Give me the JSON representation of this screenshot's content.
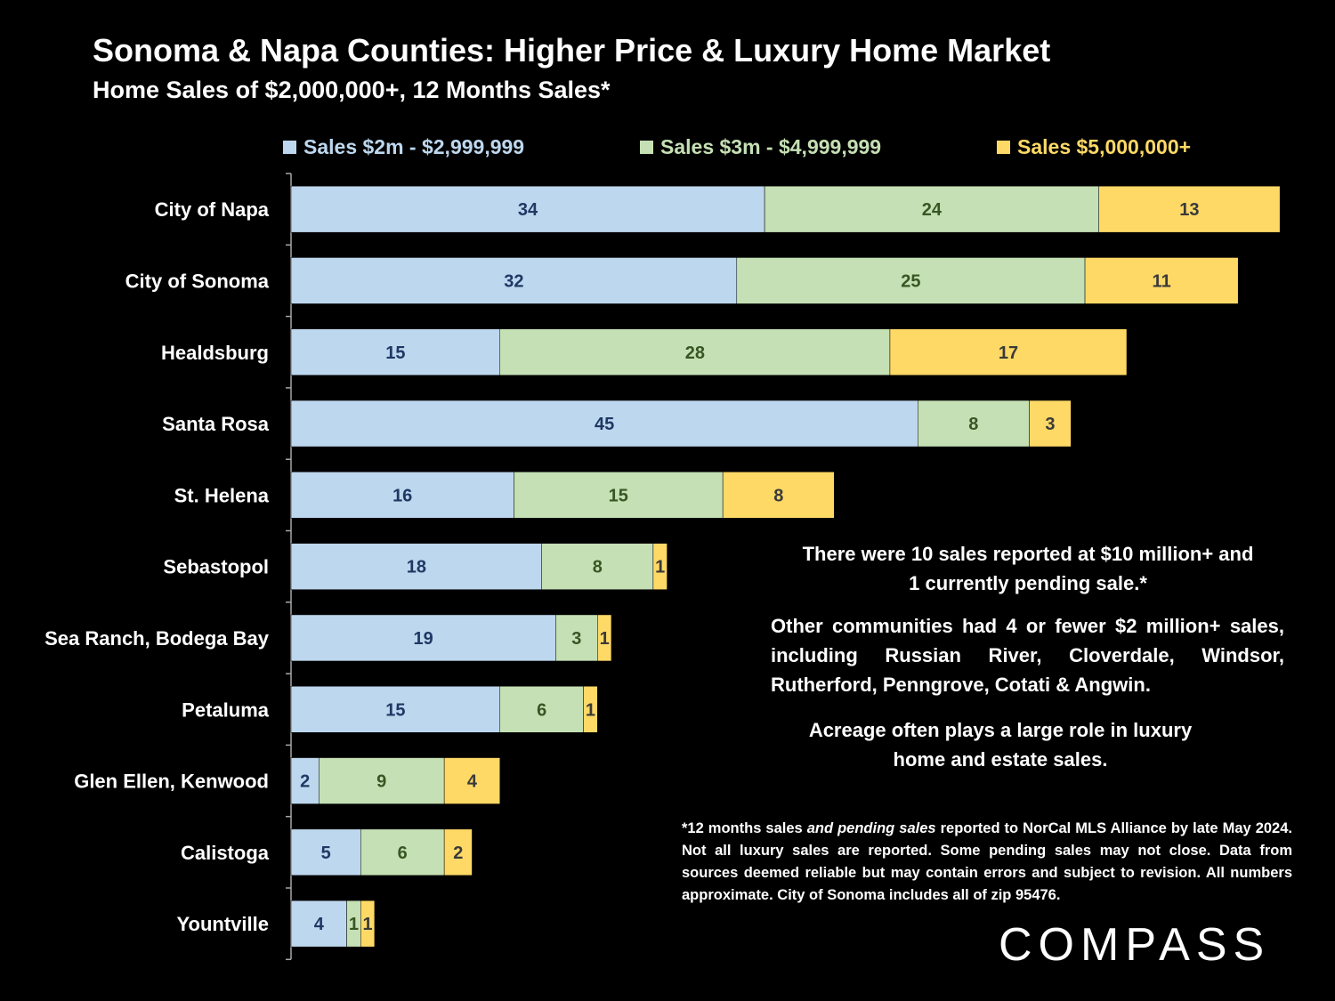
{
  "chart_data": {
    "type": "bar",
    "orientation": "horizontal",
    "stacked": true,
    "title": "Sonoma & Napa Counties: Higher Price & Luxury Home Market",
    "subtitle": "Home Sales of $2,000,000+, 12 Months Sales*",
    "categories": [
      "City of Napa",
      "City of Sonoma",
      "Healdsburg",
      "Santa Rosa",
      "St. Helena",
      "Sebastopol",
      "Sea Ranch, Bodega Bay",
      "Petaluma",
      "Glen Ellen, Kenwood",
      "Calistoga",
      "Yountville"
    ],
    "series": [
      {
        "name": "Sales $2m - $2,999,999",
        "color": "#bdd7ee",
        "label_color": "#1f3864",
        "values": [
          34,
          32,
          15,
          45,
          16,
          18,
          19,
          15,
          2,
          5,
          4
        ]
      },
      {
        "name": "Sales $3m - $4,999,999",
        "color": "#c5e0b4",
        "label_color": "#375623",
        "values": [
          24,
          25,
          28,
          8,
          15,
          8,
          3,
          6,
          9,
          6,
          1
        ]
      },
      {
        "name": "Sales $5,000,000+",
        "color": "#ffd966",
        "label_color": "#3a3a3a",
        "values": [
          13,
          11,
          17,
          3,
          8,
          1,
          1,
          1,
          4,
          2,
          1
        ]
      }
    ],
    "legend_colors": [
      "#bdd7ee",
      "#c5e0b4",
      "#ffd966"
    ],
    "xlabel": "",
    "ylabel": "",
    "xlim": [
      0,
      71
    ],
    "grid": false,
    "legend_position": "top"
  },
  "notes": {
    "ten_million": "There were 10 sales reported at $10 million+ and 1 currently pending sale.*",
    "other_communities": "Other communities had 4 or fewer $2 million+ sales, including Russian River, Cloverdale, Windsor, Rutherford, Penngrove, Cotati & Angwin.",
    "acreage": "Acreage often plays a large role in luxury home and estate sales."
  },
  "footnote": {
    "part1": "*12 months sales ",
    "italic": "and pending sales",
    "part2": " reported to NorCal MLS Alliance by late May 2024. Not all luxury sales are reported. Some pending sales may not close. Data from sources deemed reliable but may contain errors and subject to revision. All numbers approximate. City of Sonoma includes all of zip 95476."
  },
  "brand": {
    "logo_text": "COMPASS"
  }
}
